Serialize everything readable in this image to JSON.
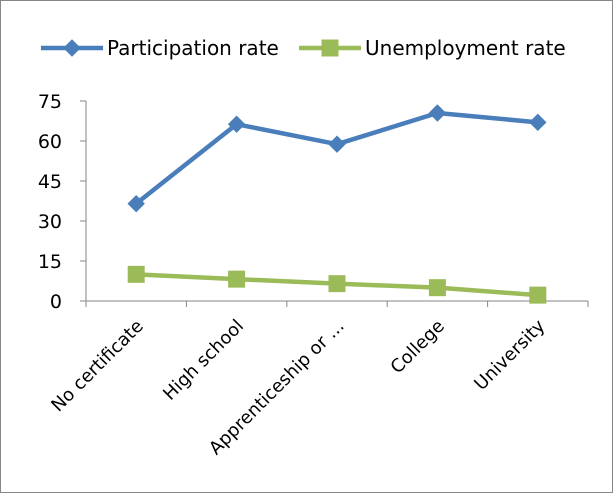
{
  "chart_data": {
    "type": "line",
    "title": "",
    "xlabel": "",
    "ylabel": "",
    "categories": [
      "No certificate",
      "High school",
      "Apprenticeship or ...",
      "College",
      "University"
    ],
    "series": [
      {
        "name": "Participation rate",
        "values": [
          36.5,
          66.3,
          58.8,
          70.5,
          67.0
        ],
        "color": "#4a7ebb",
        "marker": "diamond"
      },
      {
        "name": "Unemployment rate",
        "values": [
          10.0,
          8.2,
          6.5,
          5.0,
          2.2
        ],
        "color": "#9bbb59",
        "marker": "square"
      }
    ],
    "ylim": [
      0,
      75
    ],
    "yticks": [
      0,
      15,
      30,
      45,
      60,
      75
    ],
    "grid": false,
    "legend_position": "top"
  }
}
